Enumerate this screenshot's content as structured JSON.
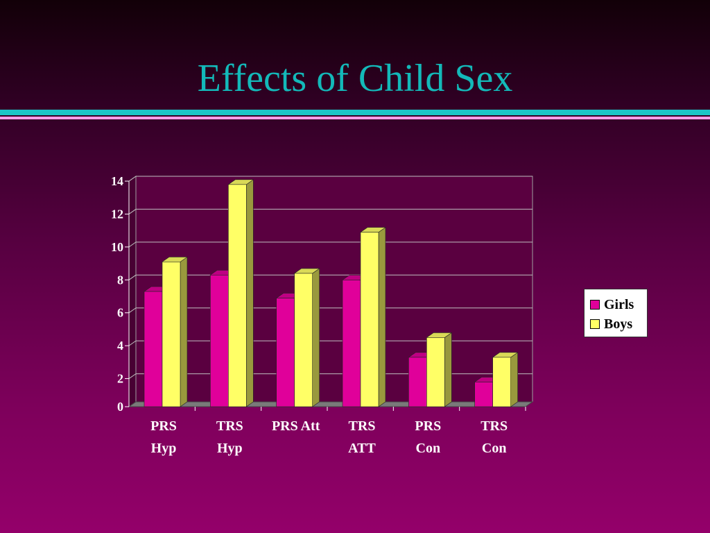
{
  "slide": {
    "title": "Effects of Child Sex"
  },
  "colors": {
    "title": "#13b9b9",
    "accent_line": "#1cc7c7",
    "accent_line_light": "#ff9fe8",
    "girls": "#e0009a",
    "boys": "#ffff66",
    "plot_bg": "#5a0040",
    "grid": "#bfbfbf"
  },
  "chart_data": {
    "type": "bar",
    "title": "",
    "xlabel": "",
    "ylabel": "",
    "categories": [
      [
        "PRS",
        "Hyp"
      ],
      [
        "TRS",
        "Hyp"
      ],
      [
        "PRS Att"
      ],
      [
        "TRS",
        "ATT"
      ],
      [
        "PRS",
        "Con"
      ],
      [
        "TRS",
        "Con"
      ]
    ],
    "series": [
      {
        "name": "Girls",
        "values": [
          7.0,
          8.0,
          6.6,
          7.7,
          3.0,
          1.5
        ]
      },
      {
        "name": "Boys",
        "values": [
          8.8,
          13.5,
          8.1,
          10.6,
          4.2,
          3.0
        ]
      }
    ],
    "ylim": [
      0,
      14
    ],
    "yticks": [
      0,
      2,
      4,
      6,
      8,
      10,
      12,
      14
    ],
    "grid": true,
    "legend_position": "right"
  }
}
